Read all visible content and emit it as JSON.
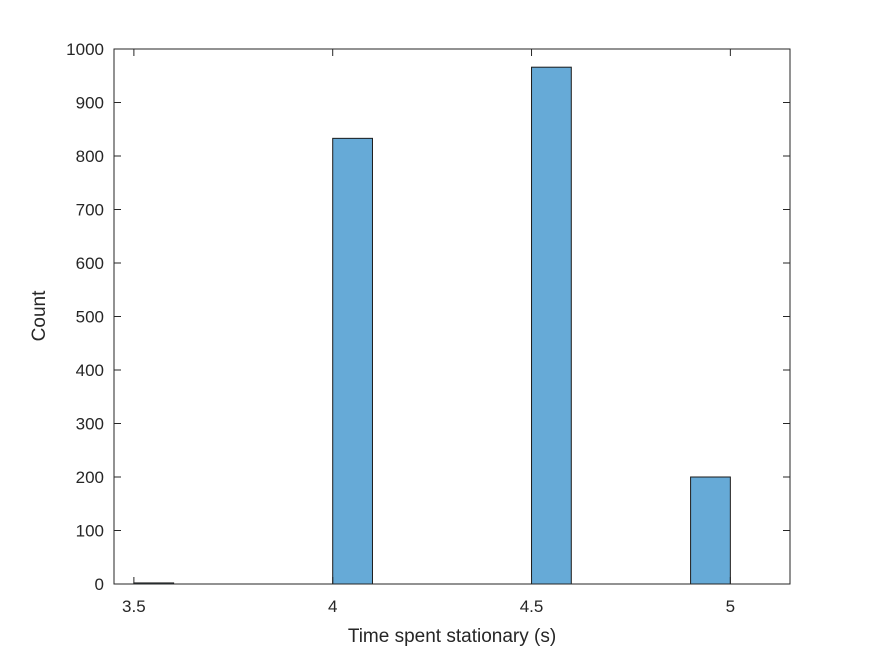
{
  "chart_data": {
    "type": "bar",
    "title": "",
    "xlabel": "Time spent stationary (s)",
    "ylabel": "Count",
    "xlim": [
      3.45,
      5.15
    ],
    "ylim": [
      0,
      1000
    ],
    "xticks": [
      3.5,
      4,
      4.5,
      5
    ],
    "xtick_labels": [
      "3.5",
      "4",
      "4.5",
      "5"
    ],
    "yticks": [
      0,
      100,
      200,
      300,
      400,
      500,
      600,
      700,
      800,
      900,
      1000
    ],
    "ytick_labels": [
      "0",
      "100",
      "200",
      "300",
      "400",
      "500",
      "600",
      "700",
      "800",
      "900",
      "1000"
    ],
    "bin_width": 0.1,
    "bins": [
      {
        "x_start": 3.5,
        "x_end": 3.6,
        "count": 2
      },
      {
        "x_start": 4.0,
        "x_end": 4.1,
        "count": 833
      },
      {
        "x_start": 4.5,
        "x_end": 4.6,
        "count": 966
      },
      {
        "x_start": 4.9,
        "x_end": 5.0,
        "count": 200
      }
    ],
    "grid": false,
    "bar_color": "#66aad7",
    "edge_color": "#1a1a1a"
  }
}
